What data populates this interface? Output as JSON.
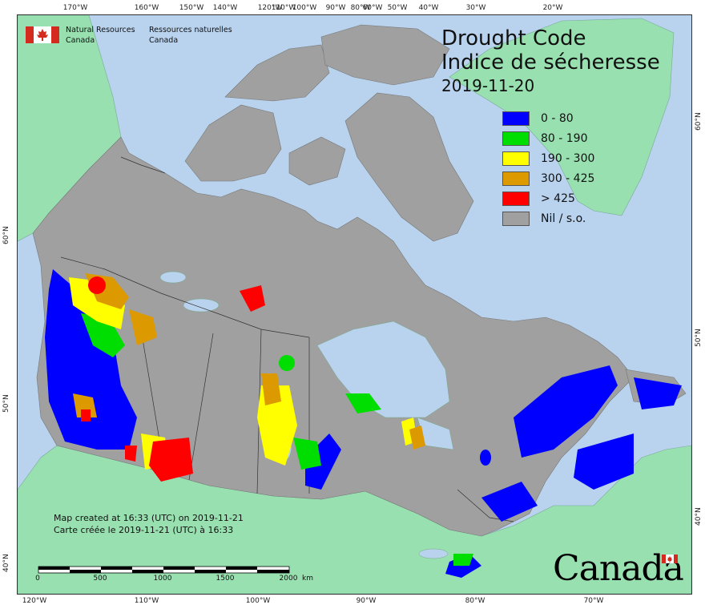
{
  "agency": {
    "name_en_line1": "Natural Resources",
    "name_en_line2": "Canada",
    "name_fr_line1": "Ressources naturelles",
    "name_fr_line2": "Canada"
  },
  "title": {
    "line1": "Drought Code",
    "line2": "Indice de sécheresse",
    "date": "2019-11-20"
  },
  "legend": [
    {
      "label": "0 - 80",
      "color": "#0000ff"
    },
    {
      "label": "80 - 190",
      "color": "#00dd00"
    },
    {
      "label": "190 - 300",
      "color": "#ffff00"
    },
    {
      "label": "300 - 425",
      "color": "#dd9900"
    },
    {
      "label": "> 425",
      "color": "#ff0000"
    },
    {
      "label": "Nil / s.o.",
      "color": "#a0a0a0"
    }
  ],
  "credits": {
    "line_en": "Map created at 16:33 (UTC) on 2019-11-21",
    "line_fr": "Carte créée le 2019-11-21 (UTC) à 16:33"
  },
  "scale": {
    "labels": [
      "0",
      "500",
      "1000",
      "1500",
      "2000"
    ],
    "unit": "km"
  },
  "wordmark": "Canada",
  "graticule": {
    "top": [
      "170°W",
      "160°W",
      "150°W",
      "140°W",
      "120°W",
      "110°W",
      "100°W",
      "90°W",
      "80°W",
      "60°W",
      "50°W",
      "40°W",
      "30°W",
      "20°W"
    ],
    "bottom": [
      "120°W",
      "110°W",
      "100°W",
      "90°W",
      "80°W",
      "70°W"
    ],
    "left": [
      "60°N",
      "50°N",
      "40°N"
    ],
    "right": [
      "60°N",
      "50°N",
      "40°N"
    ]
  },
  "colors": {
    "ocean": "#b9d3ee",
    "land_other": "#99e0b0",
    "canada_nil": "#a0a0a0",
    "lakes": "#b9d3ee"
  }
}
